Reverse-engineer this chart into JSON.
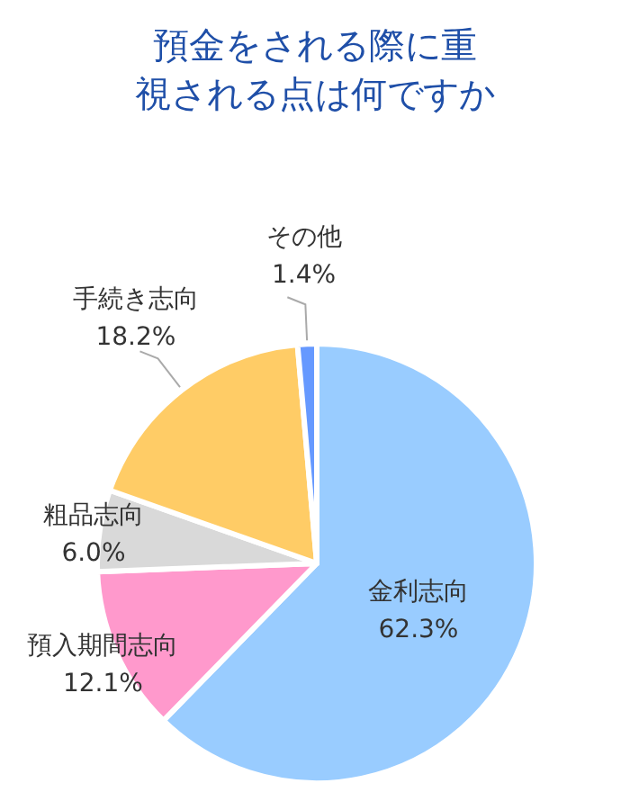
{
  "chart_data": {
    "type": "pie",
    "title": "預金をされる際に重視される点は何ですか",
    "categories": [
      "金利志向",
      "預入期間志向",
      "粗品志向",
      "手続き志向",
      "その他"
    ],
    "values": [
      62.3,
      12.1,
      6.0,
      18.2,
      1.4
    ],
    "colors": [
      "#99ccff",
      "#ff99cc",
      "#d9d9d9",
      "#ffcc66",
      "#6699ff"
    ],
    "value_labels": [
      "62.3%",
      "12.1%",
      "6.0%",
      "18.2%",
      "1.4%"
    ]
  }
}
